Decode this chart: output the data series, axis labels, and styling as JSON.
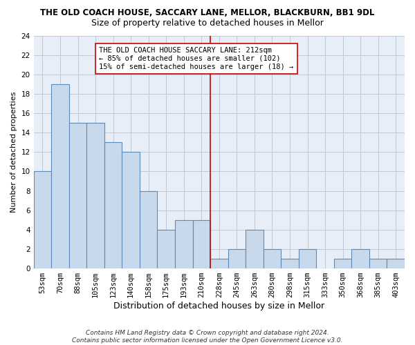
{
  "title": "THE OLD COACH HOUSE, SACCARY LANE, MELLOR, BLACKBURN, BB1 9DL",
  "subtitle": "Size of property relative to detached houses in Mellor",
  "xlabel": "Distribution of detached houses by size in Mellor",
  "ylabel": "Number of detached properties",
  "categories": [
    "53sqm",
    "70sqm",
    "88sqm",
    "105sqm",
    "123sqm",
    "140sqm",
    "158sqm",
    "175sqm",
    "193sqm",
    "210sqm",
    "228sqm",
    "245sqm",
    "263sqm",
    "280sqm",
    "298sqm",
    "315sqm",
    "333sqm",
    "350sqm",
    "368sqm",
    "385sqm",
    "403sqm"
  ],
  "values": [
    10,
    19,
    15,
    15,
    13,
    12,
    8,
    4,
    5,
    5,
    1,
    2,
    4,
    2,
    1,
    2,
    0,
    1,
    2,
    1,
    1
  ],
  "bar_color": "#c9d9ec",
  "bar_edge_color": "#5a8ab5",
  "vline_x_index": 9.5,
  "vline_color": "#cc0000",
  "annotation_text": "THE OLD COACH HOUSE SACCARY LANE: 212sqm\n← 85% of detached houses are smaller (102)\n15% of semi-detached houses are larger (18) →",
  "annotation_box_color": "#ffffff",
  "annotation_box_edge": "#cc0000",
  "ylim": [
    0,
    24
  ],
  "yticks": [
    0,
    2,
    4,
    6,
    8,
    10,
    12,
    14,
    16,
    18,
    20,
    22,
    24
  ],
  "grid_color": "#c0c8d8",
  "bg_color": "#e8eef8",
  "footer": "Contains HM Land Registry data © Crown copyright and database right 2024.\nContains public sector information licensed under the Open Government Licence v3.0.",
  "title_fontsize": 8.5,
  "subtitle_fontsize": 9,
  "xlabel_fontsize": 9,
  "ylabel_fontsize": 8,
  "tick_fontsize": 7.5,
  "annotation_fontsize": 7.5,
  "footer_fontsize": 6.5
}
